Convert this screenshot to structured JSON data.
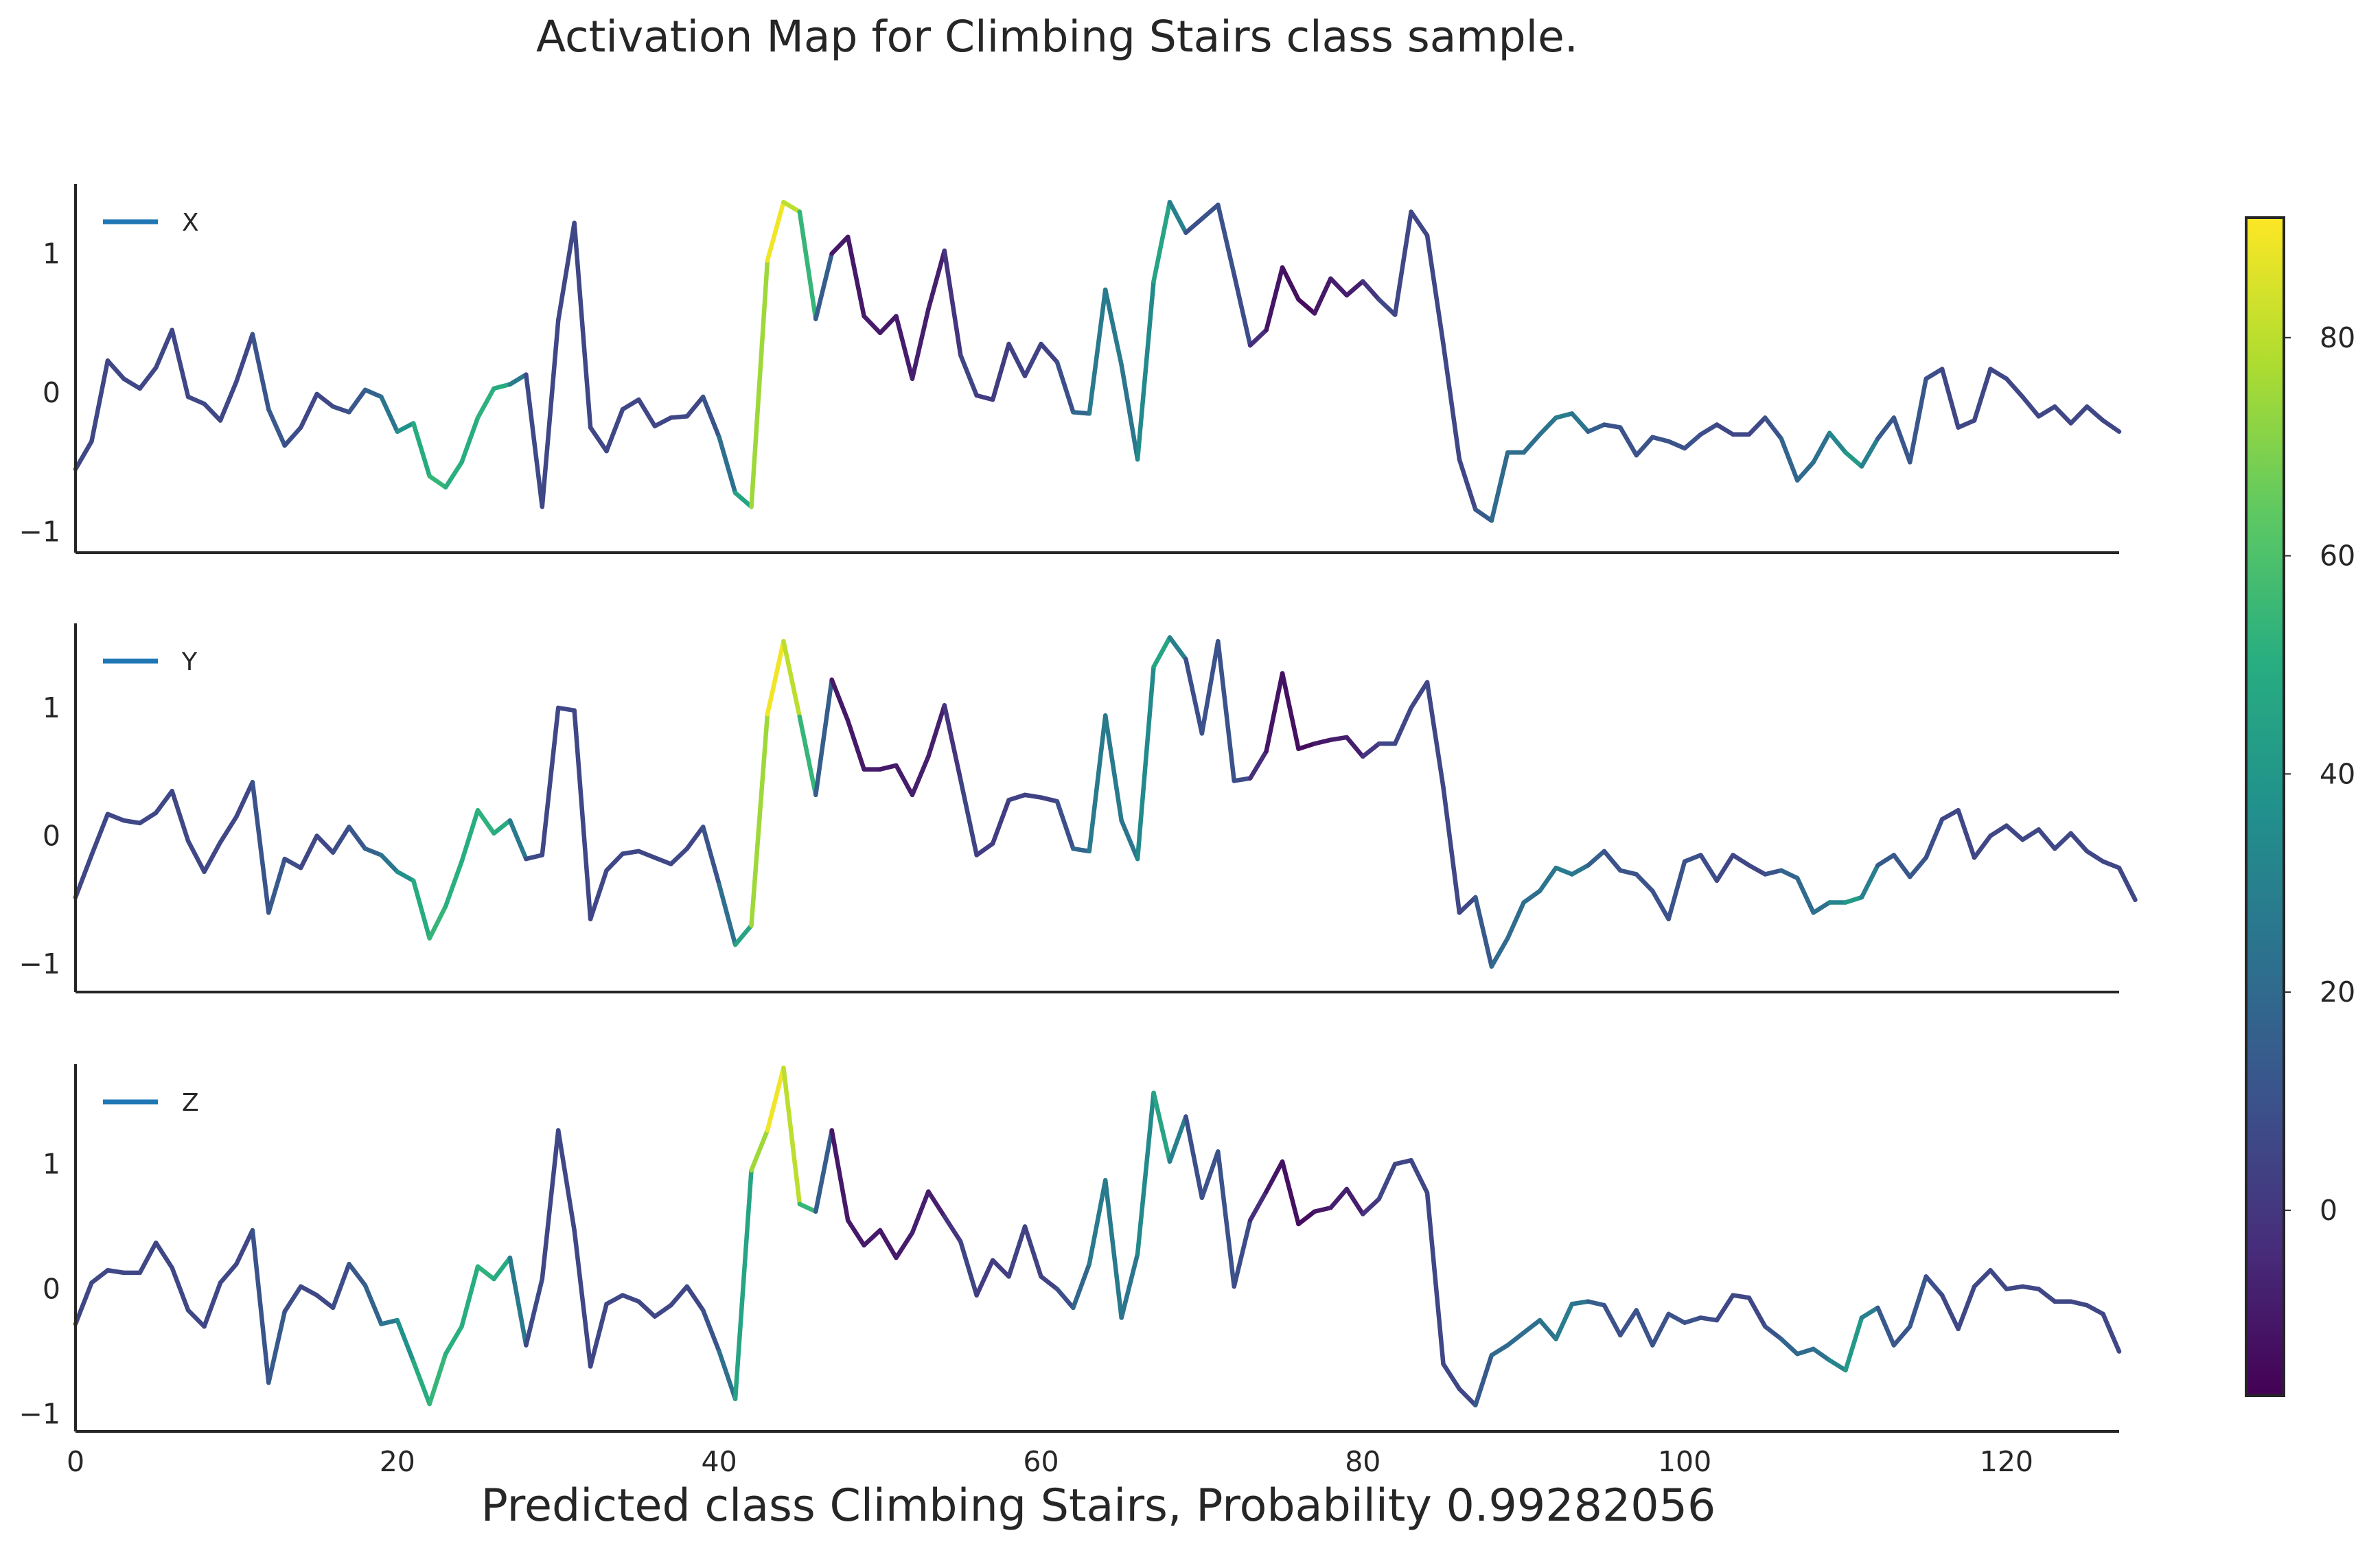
{
  "chart_data": {
    "type": "line",
    "title": "Activation Map for Climbing Stairs class sample.",
    "xlabel": "Predicted class Climbing Stairs, Probability 0.99282056",
    "xlim": [
      0,
      127
    ],
    "x_ticks": [
      0,
      20,
      40,
      60,
      80,
      100,
      120
    ],
    "grid": false,
    "legend_location": "upper left",
    "colormap": "viridis",
    "colorbar": {
      "range": [
        -17,
        91
      ],
      "ticks": [
        0,
        20,
        40,
        60,
        80
      ]
    },
    "activation": [
      6,
      6,
      6,
      6,
      6,
      6,
      6,
      6,
      6,
      6,
      6,
      6,
      16,
      10,
      6,
      6,
      6,
      10,
      14,
      20,
      30,
      44,
      54,
      54,
      48,
      52,
      52,
      46,
      8,
      6,
      6,
      6,
      6,
      6,
      6,
      6,
      6,
      6,
      6,
      6,
      16,
      30,
      62,
      88,
      90,
      70,
      38,
      -8,
      -12,
      -8,
      -10,
      -10,
      -8,
      -8,
      -8,
      6,
      4,
      0,
      4,
      4,
      4,
      4,
      14,
      24,
      30,
      24,
      26,
      42,
      50,
      8,
      10,
      10,
      10,
      6,
      -12,
      -10,
      -15,
      -12,
      -8,
      -8,
      -8,
      6,
      6,
      6,
      6,
      6,
      6,
      6,
      20,
      20,
      22,
      22,
      26,
      30,
      20,
      10,
      10,
      10,
      10,
      10,
      10,
      10,
      6,
      6,
      6,
      6,
      16,
      20,
      20,
      26,
      38,
      44,
      14,
      12,
      12,
      12,
      6,
      6,
      6,
      6,
      6,
      6,
      6,
      6,
      6,
      6,
      6,
      6,
      6,
      6,
      6
    ],
    "subplots": [
      {
        "legend": "X",
        "yticks": [
          -1,
          0,
          1
        ],
        "ylim": [
          -1.15,
          1.5
        ],
        "values": [
          -0.55,
          -0.35,
          0.23,
          0.1,
          0.03,
          0.18,
          0.45,
          -0.03,
          -0.08,
          -0.2,
          0.08,
          0.42,
          -0.12,
          -0.38,
          -0.25,
          -0.01,
          -0.1,
          -0.14,
          0.02,
          -0.03,
          -0.28,
          -0.22,
          -0.6,
          -0.68,
          -0.5,
          -0.18,
          0.03,
          0.06,
          0.13,
          -0.82,
          0.52,
          1.22,
          -0.25,
          -0.42,
          -0.12,
          -0.05,
          -0.24,
          -0.18,
          -0.17,
          -0.03,
          -0.32,
          -0.72,
          -0.82,
          0.95,
          1.37,
          1.3,
          0.53,
          1.0,
          1.12,
          0.55,
          0.43,
          0.55,
          0.1,
          0.6,
          1.02,
          0.27,
          -0.02,
          -0.05,
          0.35,
          0.12,
          0.35,
          0.22,
          -0.14,
          -0.15,
          0.74,
          0.2,
          -0.48,
          0.8,
          1.37,
          1.15,
          1.25,
          1.35,
          0.85,
          0.34,
          0.45,
          0.9,
          0.67,
          0.57,
          0.82,
          0.7,
          0.8,
          0.67,
          0.56,
          1.3,
          1.13,
          0.35,
          -0.48,
          -0.84,
          -0.92,
          -0.43,
          -0.43,
          -0.3,
          -0.18,
          -0.15,
          -0.28,
          -0.23,
          -0.25,
          -0.45,
          -0.32,
          -0.35,
          -0.4,
          -0.3,
          -0.23,
          -0.3,
          -0.3,
          -0.18,
          -0.33,
          -0.63,
          -0.5,
          -0.29,
          -0.43,
          -0.53,
          -0.33,
          -0.18,
          -0.5,
          0.1,
          0.17,
          -0.25,
          -0.2,
          0.17,
          0.1,
          -0.03,
          -0.17,
          -0.1,
          -0.22,
          -0.1,
          -0.2,
          -0.28
        ]
      },
      {
        "legend": "Y",
        "yticks": [
          -1,
          0,
          1
        ],
        "ylim": [
          -1.22,
          1.66
        ],
        "values": [
          -0.48,
          -0.15,
          0.17,
          0.12,
          0.1,
          0.18,
          0.35,
          -0.04,
          -0.28,
          -0.05,
          0.15,
          0.42,
          -0.6,
          -0.18,
          -0.25,
          0.0,
          -0.13,
          0.07,
          -0.1,
          -0.15,
          -0.28,
          -0.35,
          -0.8,
          -0.55,
          -0.2,
          0.2,
          0.02,
          0.12,
          -0.18,
          -0.15,
          1.0,
          0.98,
          -0.65,
          -0.27,
          -0.14,
          -0.12,
          -0.17,
          -0.22,
          -0.1,
          0.07,
          -0.38,
          -0.85,
          -0.7,
          0.95,
          1.52,
          0.93,
          0.32,
          1.22,
          0.9,
          0.52,
          0.52,
          0.55,
          0.32,
          0.62,
          1.02,
          0.44,
          -0.15,
          -0.06,
          0.28,
          0.32,
          0.3,
          0.27,
          -0.1,
          -0.12,
          0.94,
          0.12,
          -0.18,
          1.32,
          1.55,
          1.38,
          0.8,
          1.52,
          0.43,
          0.45,
          0.66,
          1.27,
          0.68,
          0.72,
          0.75,
          0.77,
          0.62,
          0.72,
          0.72,
          1.0,
          1.2,
          0.38,
          -0.6,
          -0.48,
          -1.02,
          -0.8,
          -0.52,
          -0.43,
          -0.25,
          -0.3,
          -0.23,
          -0.12,
          -0.27,
          -0.3,
          -0.43,
          -0.65,
          -0.2,
          -0.15,
          -0.35,
          -0.15,
          -0.23,
          -0.3,
          -0.27,
          -0.33,
          -0.6,
          -0.52,
          -0.52,
          -0.48,
          -0.23,
          -0.15,
          -0.32,
          -0.17,
          0.13,
          0.2,
          -0.17,
          0.0,
          0.08,
          -0.03,
          0.05,
          -0.1,
          0.02,
          -0.12,
          -0.2,
          -0.25,
          -0.5
        ]
      },
      {
        "legend": "Z",
        "yticks": [
          -1,
          0,
          1
        ],
        "ylim": [
          -1.14,
          1.8
        ],
        "values": [
          -0.28,
          0.05,
          0.15,
          0.13,
          0.13,
          0.37,
          0.17,
          -0.17,
          -0.3,
          0.05,
          0.2,
          0.47,
          -0.75,
          -0.18,
          0.02,
          -0.05,
          -0.15,
          0.2,
          0.03,
          -0.28,
          -0.25,
          -0.58,
          -0.92,
          -0.52,
          -0.3,
          0.18,
          0.08,
          0.25,
          -0.45,
          0.08,
          1.27,
          0.47,
          -0.62,
          -0.12,
          -0.05,
          -0.1,
          -0.22,
          -0.13,
          0.02,
          -0.17,
          -0.5,
          -0.88,
          0.95,
          1.27,
          1.77,
          0.68,
          0.62,
          1.27,
          0.55,
          0.35,
          0.47,
          0.25,
          0.45,
          0.78,
          0.58,
          0.38,
          -0.05,
          0.23,
          0.1,
          0.5,
          0.1,
          0.0,
          -0.15,
          0.2,
          0.87,
          -0.23,
          0.28,
          1.57,
          1.02,
          1.38,
          0.73,
          1.1,
          0.02,
          0.55,
          0.78,
          1.02,
          0.52,
          0.62,
          0.65,
          0.8,
          0.6,
          0.72,
          1.0,
          1.03,
          0.77,
          -0.6,
          -0.8,
          -0.93,
          -0.53,
          -0.45,
          -0.35,
          -0.25,
          -0.4,
          -0.12,
          -0.1,
          -0.13,
          -0.37,
          -0.17,
          -0.45,
          -0.2,
          -0.27,
          -0.23,
          -0.25,
          -0.05,
          -0.07,
          -0.3,
          -0.4,
          -0.52,
          -0.48,
          -0.57,
          -0.65,
          -0.23,
          -0.15,
          -0.45,
          -0.3,
          0.1,
          -0.05,
          -0.32,
          0.02,
          0.15,
          0.0,
          0.02,
          0.0,
          -0.1,
          -0.1,
          -0.13,
          -0.2,
          -0.5
        ]
      }
    ]
  }
}
